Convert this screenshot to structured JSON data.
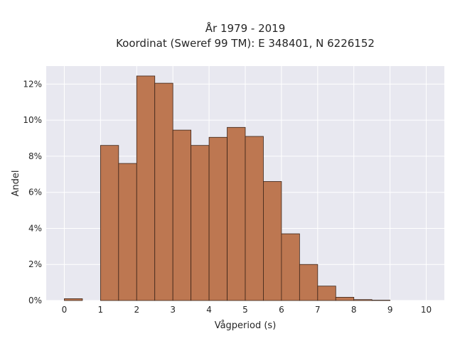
{
  "chart_data": {
    "type": "bar",
    "title_lines": [
      "År 1979 - 2019",
      "Koordinat (Sweref 99 TM): E 348401, N 6226152"
    ],
    "xlabel": "Vågperiod (s)",
    "ylabel": "Andel",
    "xlim": [
      -0.5,
      10.5
    ],
    "ylim": [
      0,
      13
    ],
    "x_ticks": [
      0,
      1,
      2,
      3,
      4,
      5,
      6,
      7,
      8,
      9,
      10
    ],
    "x_tick_labels": [
      "0",
      "1",
      "2",
      "3",
      "4",
      "5",
      "6",
      "7",
      "8",
      "9",
      "10"
    ],
    "y_ticks": [
      0,
      2,
      4,
      6,
      8,
      10,
      12
    ],
    "y_tick_labels": [
      "0%",
      "2%",
      "4%",
      "6%",
      "8%",
      "10%",
      "12%"
    ],
    "bin_width": 0.5,
    "bins": [
      {
        "start": 0.0,
        "value": 0.1
      },
      {
        "start": 0.5,
        "value": 0.0
      },
      {
        "start": 1.0,
        "value": 8.6
      },
      {
        "start": 1.5,
        "value": 7.6
      },
      {
        "start": 2.0,
        "value": 12.45
      },
      {
        "start": 2.5,
        "value": 12.05
      },
      {
        "start": 3.0,
        "value": 9.45
      },
      {
        "start": 3.5,
        "value": 8.6
      },
      {
        "start": 4.0,
        "value": 9.05
      },
      {
        "start": 4.5,
        "value": 9.6
      },
      {
        "start": 5.0,
        "value": 9.1
      },
      {
        "start": 5.5,
        "value": 6.6
      },
      {
        "start": 6.0,
        "value": 3.7
      },
      {
        "start": 6.5,
        "value": 2.0
      },
      {
        "start": 7.0,
        "value": 0.8
      },
      {
        "start": 7.5,
        "value": 0.18
      },
      {
        "start": 8.0,
        "value": 0.05
      },
      {
        "start": 8.5,
        "value": 0.02
      }
    ],
    "grid": true,
    "colors": {
      "bar_fill": "#bd7751",
      "bar_edge": "#3b2418",
      "plot_background": "#e8e8f0",
      "grid": "#ffffff"
    }
  }
}
